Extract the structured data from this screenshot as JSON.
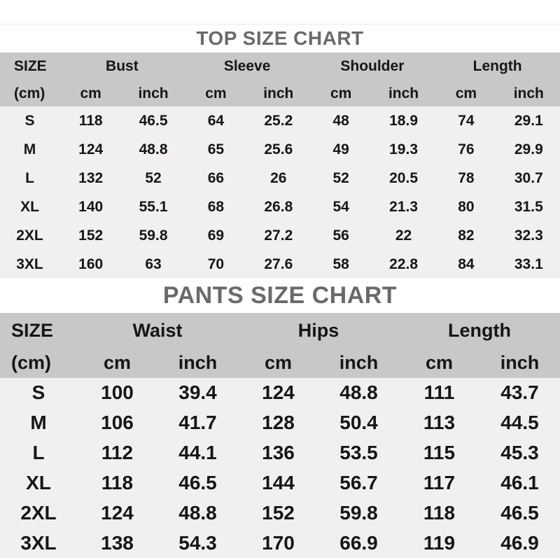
{
  "colors": {
    "page_bg": "#ffffff",
    "header_bg": "#c9c8c8",
    "body_bg": "#f1f0ef",
    "title_text": "#6a6a6a",
    "data_text": "#161616",
    "divider": "#e8e8e8"
  },
  "top_chart": {
    "title": "TOP SIZE CHART",
    "size_header": {
      "line1": "SIZE",
      "line2": "(cm)"
    },
    "groups": [
      "Bust",
      "Sleeve",
      "Shoulder",
      "Length"
    ],
    "unit_cm": "cm",
    "unit_inch": "inch",
    "rows": [
      {
        "size": "S",
        "values": [
          "118",
          "46.5",
          "64",
          "25.2",
          "48",
          "18.9",
          "74",
          "29.1"
        ]
      },
      {
        "size": "M",
        "values": [
          "124",
          "48.8",
          "65",
          "25.6",
          "49",
          "19.3",
          "76",
          "29.9"
        ]
      },
      {
        "size": "L",
        "values": [
          "132",
          "52",
          "66",
          "26",
          "52",
          "20.5",
          "78",
          "30.7"
        ]
      },
      {
        "size": "XL",
        "values": [
          "140",
          "55.1",
          "68",
          "26.8",
          "54",
          "21.3",
          "80",
          "31.5"
        ]
      },
      {
        "size": "2XL",
        "values": [
          "152",
          "59.8",
          "69",
          "27.2",
          "56",
          "22",
          "82",
          "32.3"
        ]
      },
      {
        "size": "3XL",
        "values": [
          "160",
          "63",
          "70",
          "27.6",
          "58",
          "22.8",
          "84",
          "33.1"
        ]
      }
    ]
  },
  "pants_chart": {
    "title": "PANTS SIZE CHART",
    "size_header": {
      "line1": "SIZE",
      "line2": "(cm)"
    },
    "groups": [
      "Waist",
      "Hips",
      "Length"
    ],
    "unit_cm": "cm",
    "unit_inch": "inch",
    "rows": [
      {
        "size": "S",
        "values": [
          "100",
          "39.4",
          "124",
          "48.8",
          "111",
          "43.7"
        ]
      },
      {
        "size": "M",
        "values": [
          "106",
          "41.7",
          "128",
          "50.4",
          "113",
          "44.5"
        ]
      },
      {
        "size": "L",
        "values": [
          "112",
          "44.1",
          "136",
          "53.5",
          "115",
          "45.3"
        ]
      },
      {
        "size": "XL",
        "values": [
          "118",
          "46.5",
          "144",
          "56.7",
          "117",
          "46.1"
        ]
      },
      {
        "size": "2XL",
        "values": [
          "124",
          "48.8",
          "152",
          "59.8",
          "118",
          "46.5"
        ]
      },
      {
        "size": "3XL",
        "values": [
          "138",
          "54.3",
          "170",
          "66.9",
          "119",
          "46.9"
        ]
      }
    ]
  },
  "chart_data": [
    {
      "type": "table",
      "title": "TOP SIZE CHART",
      "columns": [
        "SIZE (cm)",
        "Bust cm",
        "Bust inch",
        "Sleeve cm",
        "Sleeve inch",
        "Shoulder cm",
        "Shoulder inch",
        "Length cm",
        "Length inch"
      ],
      "rows": [
        [
          "S",
          118,
          46.5,
          64,
          25.2,
          48,
          18.9,
          74,
          29.1
        ],
        [
          "M",
          124,
          48.8,
          65,
          25.6,
          49,
          19.3,
          76,
          29.9
        ],
        [
          "L",
          132,
          52,
          66,
          26,
          52,
          20.5,
          78,
          30.7
        ],
        [
          "XL",
          140,
          55.1,
          68,
          26.8,
          54,
          21.3,
          80,
          31.5
        ],
        [
          "2XL",
          152,
          59.8,
          69,
          27.2,
          56,
          22,
          82,
          32.3
        ],
        [
          "3XL",
          160,
          63,
          70,
          27.6,
          58,
          22.8,
          84,
          33.1
        ]
      ]
    },
    {
      "type": "table",
      "title": "PANTS SIZE CHART",
      "columns": [
        "SIZE (cm)",
        "Waist cm",
        "Waist inch",
        "Hips cm",
        "Hips inch",
        "Length cm",
        "Length inch"
      ],
      "rows": [
        [
          "S",
          100,
          39.4,
          124,
          48.8,
          111,
          43.7
        ],
        [
          "M",
          106,
          41.7,
          128,
          50.4,
          113,
          44.5
        ],
        [
          "L",
          112,
          44.1,
          136,
          53.5,
          115,
          45.3
        ],
        [
          "XL",
          118,
          46.5,
          144,
          56.7,
          117,
          46.1
        ],
        [
          "2XL",
          124,
          48.8,
          152,
          59.8,
          118,
          46.5
        ],
        [
          "3XL",
          138,
          54.3,
          170,
          66.9,
          119,
          46.9
        ]
      ]
    }
  ]
}
